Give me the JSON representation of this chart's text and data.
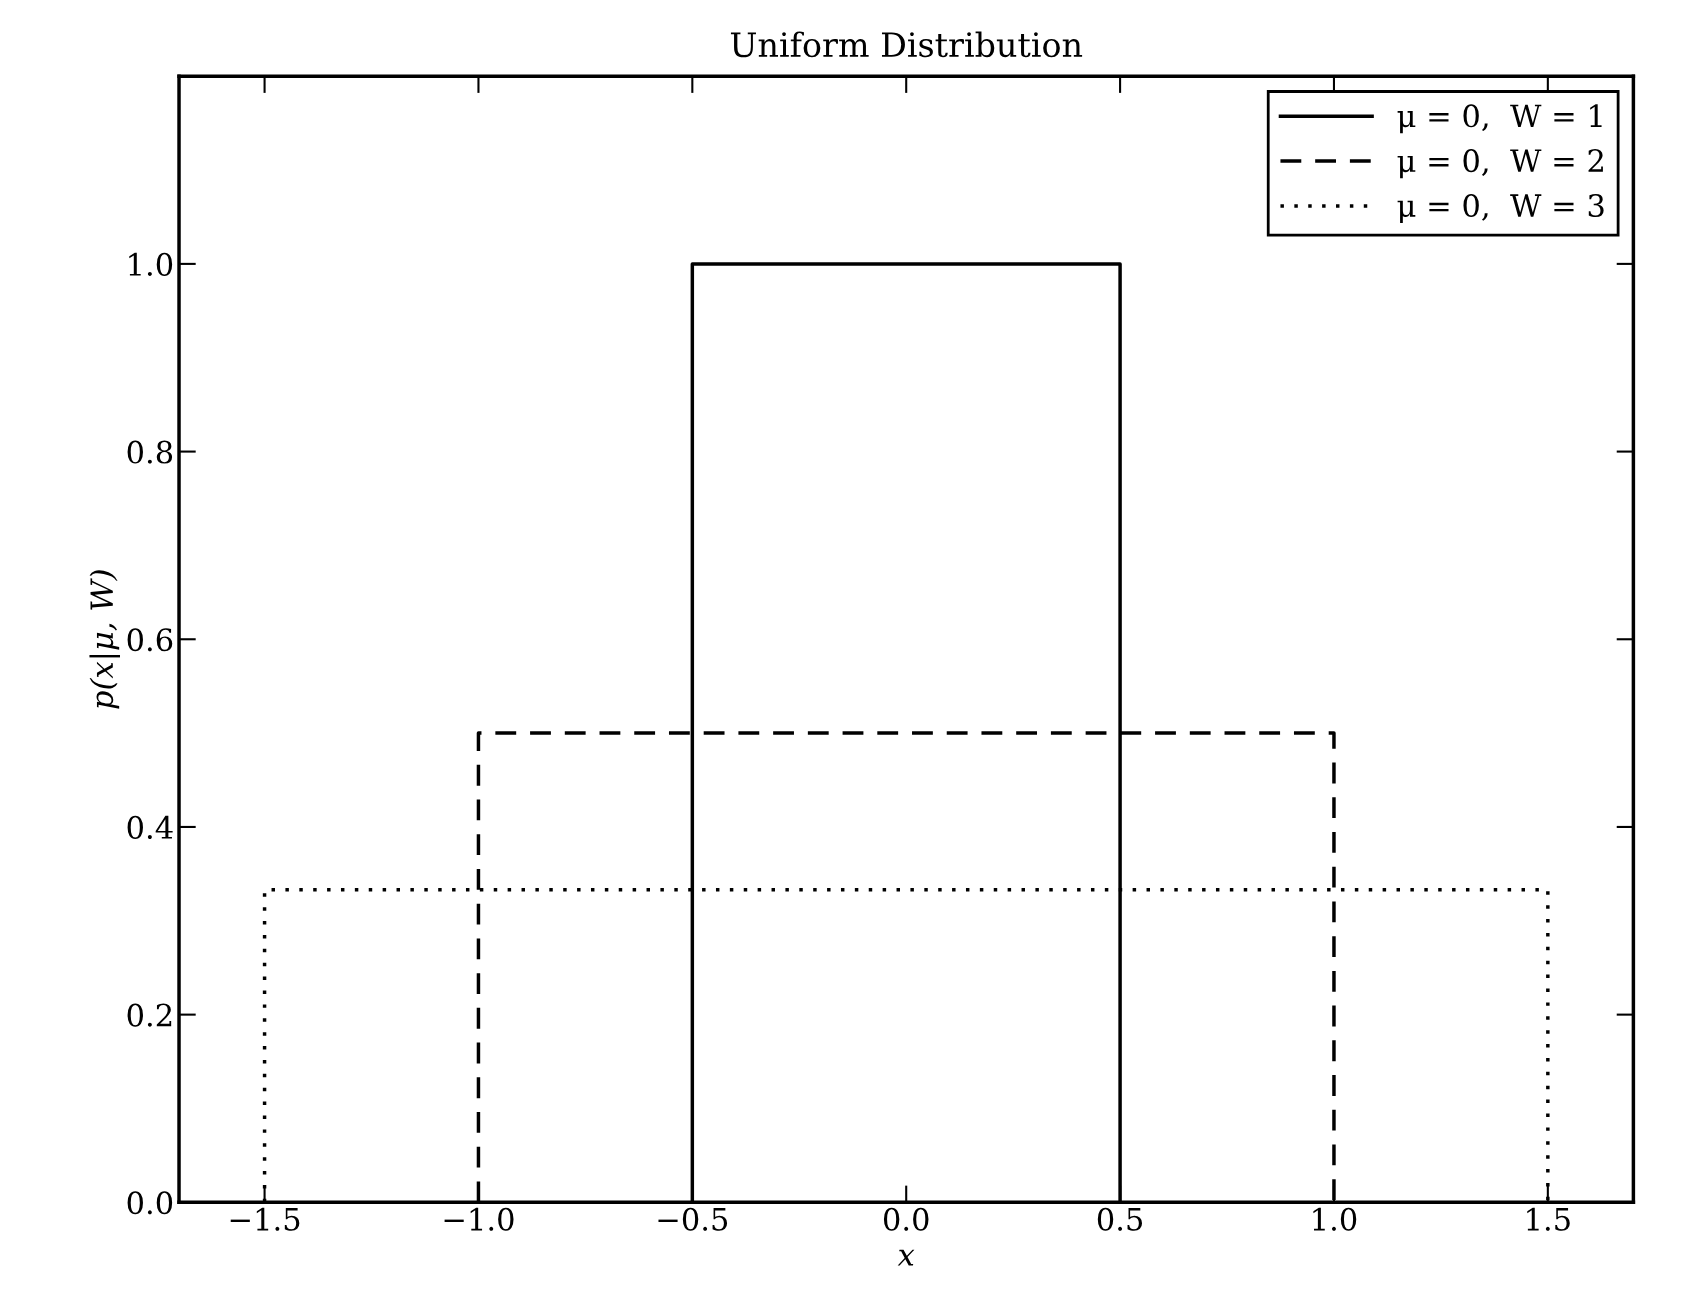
{
  "chart_data": {
    "type": "line",
    "title": "Uniform Distribution",
    "xlabel": "x",
    "ylabel": "p(x|μ, W)",
    "series": [
      {
        "name": "μ = 0,  W = 1",
        "color": "#000000",
        "line_style": "solid",
        "x": [
          -0.5,
          -0.5,
          0.5,
          0.5
        ],
        "values": [
          0,
          1.0,
          1.0,
          0
        ]
      },
      {
        "name": "μ = 0,  W = 2",
        "color": "#000000",
        "line_style": "dashed",
        "x": [
          -1.0,
          -1.0,
          1.0,
          1.0
        ],
        "values": [
          0,
          0.5,
          0.5,
          0
        ]
      },
      {
        "name": "μ = 0,  W = 3",
        "color": "#000000",
        "line_style": "dotted",
        "x": [
          -1.5,
          -1.5,
          1.5,
          1.5
        ],
        "values": [
          0,
          0.333,
          0.333,
          0
        ]
      }
    ],
    "xlim": [
      -1.7,
      1.7
    ],
    "ylim": [
      0,
      1.2
    ],
    "xticks": [
      {
        "value": -1.5,
        "label": "−1.5"
      },
      {
        "value": -1.0,
        "label": "−1.0"
      },
      {
        "value": -0.5,
        "label": "−0.5"
      },
      {
        "value": 0.0,
        "label": "0.0"
      },
      {
        "value": 0.5,
        "label": "0.5"
      },
      {
        "value": 1.0,
        "label": "1.0"
      },
      {
        "value": 1.5,
        "label": "1.5"
      }
    ],
    "yticks": [
      {
        "value": 0.0,
        "label": "0.0"
      },
      {
        "value": 0.2,
        "label": "0.2"
      },
      {
        "value": 0.4,
        "label": "0.4"
      },
      {
        "value": 0.6,
        "label": "0.6"
      },
      {
        "value": 0.8,
        "label": "0.8"
      },
      {
        "value": 1.0,
        "label": "1.0"
      }
    ],
    "grid": false,
    "legend": "top right"
  }
}
